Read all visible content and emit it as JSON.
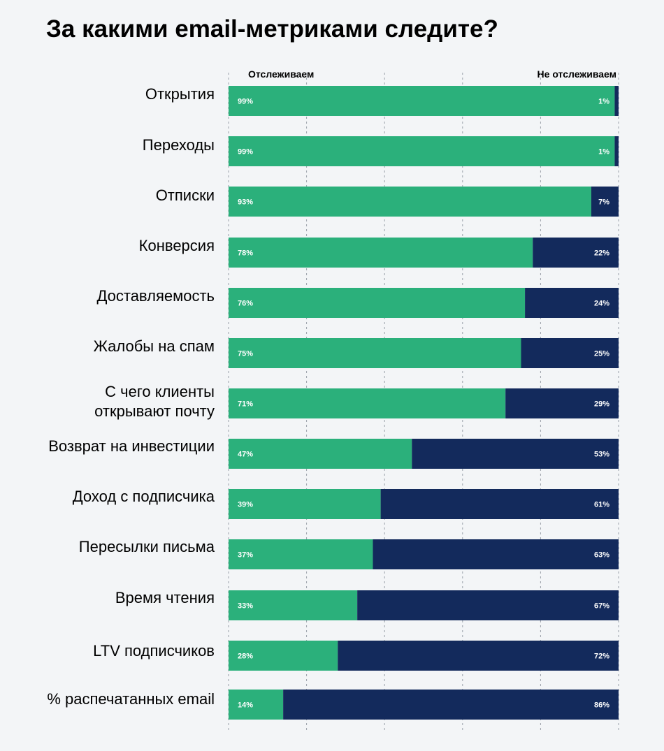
{
  "title": "За какими email-метриками следите?",
  "chart_data": {
    "type": "bar",
    "stacked": true,
    "orientation": "horizontal",
    "title": "За какими email-метриками следите?",
    "categories": [
      "Открытия",
      "Переходы",
      "Отписки",
      "Конверсия",
      "Доставляемость",
      "Жалобы на спам",
      "С чего клиенты открывают почту",
      "Возврат на инвестиции",
      "Доход с подписчика",
      "Пересылки письма",
      "Время чтения",
      "LTV подписчиков",
      "% распечатанных email"
    ],
    "series": [
      {
        "name": "Отслеживаем",
        "color": "#2bb07b",
        "values": [
          99,
          99,
          93,
          78,
          76,
          75,
          71,
          47,
          39,
          37,
          33,
          28,
          14
        ],
        "labels": [
          "99%",
          "99%",
          "93%",
          "78%",
          "76%",
          "75%",
          "71%",
          "47%",
          "39%",
          "37%",
          "33%",
          "28%",
          "14%"
        ]
      },
      {
        "name": "Не отслеживаем",
        "color": "#132a5c",
        "values": [
          1,
          1,
          7,
          22,
          24,
          25,
          29,
          53,
          61,
          63,
          67,
          72,
          86
        ],
        "labels": [
          "1%",
          "1%",
          "7%",
          "22%",
          "24%",
          "25%",
          "29%",
          "53%",
          "61%",
          "63%",
          "67%",
          "72%",
          "86%"
        ]
      }
    ],
    "xlim": [
      0,
      100
    ],
    "grid": true,
    "legend": "top"
  }
}
